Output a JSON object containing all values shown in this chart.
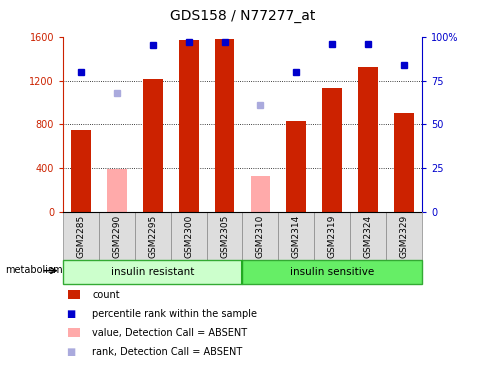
{
  "title": "GDS158 / N77277_at",
  "samples": [
    "GSM2285",
    "GSM2290",
    "GSM2295",
    "GSM2300",
    "GSM2305",
    "GSM2310",
    "GSM2314",
    "GSM2319",
    "GSM2324",
    "GSM2329"
  ],
  "bar_values": [
    750,
    null,
    1210,
    1570,
    1580,
    null,
    830,
    1130,
    1320,
    900
  ],
  "bar_absent_values": [
    null,
    390,
    null,
    null,
    null,
    330,
    null,
    null,
    null,
    null
  ],
  "rank_values": [
    80,
    null,
    95,
    97,
    97,
    null,
    80,
    96,
    96,
    84
  ],
  "rank_absent_values": [
    null,
    68,
    null,
    null,
    null,
    61,
    null,
    null,
    null,
    null
  ],
  "bar_color": "#cc2200",
  "bar_absent_color": "#ffaaaa",
  "rank_color": "#0000cc",
  "rank_absent_color": "#aaaadd",
  "ylim_left": [
    0,
    1600
  ],
  "ylim_right": [
    0,
    100
  ],
  "yticks_left": [
    0,
    400,
    800,
    1200,
    1600
  ],
  "yticks_right": [
    0,
    25,
    50,
    75,
    100
  ],
  "yticklabels_right": [
    "0",
    "25",
    "50",
    "75",
    "100%"
  ],
  "groups": [
    {
      "label": "insulin resistant",
      "start": 0,
      "end": 5,
      "color": "#ccffcc"
    },
    {
      "label": "insulin sensitive",
      "start": 5,
      "end": 10,
      "color": "#66ee66"
    }
  ],
  "group_label": "metabolism",
  "bg_color": "#ffffff",
  "legend": [
    {
      "label": "count",
      "color": "#cc2200",
      "is_rank": false
    },
    {
      "label": "percentile rank within the sample",
      "color": "#0000cc",
      "is_rank": true
    },
    {
      "label": "value, Detection Call = ABSENT",
      "color": "#ffaaaa",
      "is_rank": false
    },
    {
      "label": "rank, Detection Call = ABSENT",
      "color": "#aaaadd",
      "is_rank": true
    }
  ]
}
